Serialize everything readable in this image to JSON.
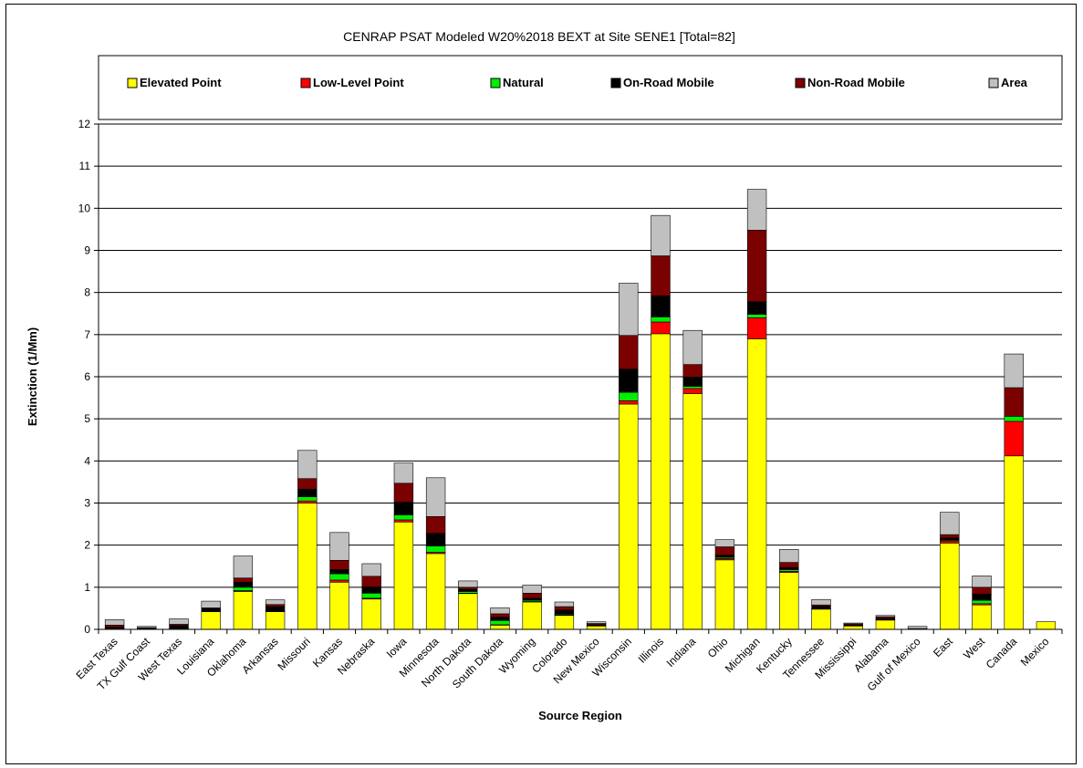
{
  "chart_data": {
    "type": "bar",
    "stacked": true,
    "title": "CENRAP PSAT Modeled W20%2018 BEXT at Site SENE1 [Total=82]",
    "xlabel": "Source Region",
    "ylabel": "Extinction (1/Mm)",
    "ylim": [
      0,
      12
    ],
    "yticks": [
      0,
      1,
      2,
      3,
      4,
      5,
      6,
      7,
      8,
      9,
      10,
      11,
      12
    ],
    "grid": true,
    "legend_position": "top",
    "categories": [
      "East Texas",
      "TX Gulf Coast",
      "West Texas",
      "Louisiana",
      "Oklahoma",
      "Arkansas",
      "Missouri",
      "Kansas",
      "Nebraska",
      "Iowa",
      "Minnesota",
      "North Dakota",
      "South Dakota",
      "Wyoming",
      "Colorado",
      "New Mexico",
      "Wisconsin",
      "Illinois",
      "Indiana",
      "Ohio",
      "Michigan",
      "Kentucky",
      "Tennessee",
      "Mississippi",
      "Alabama",
      "Gulf of Mexico",
      "East",
      "West",
      "Canada",
      "Mexico"
    ],
    "series": [
      {
        "name": "Elevated Point",
        "color": "#ffff00",
        "values": [
          0.02,
          0.01,
          0.02,
          0.42,
          0.9,
          0.42,
          3.0,
          1.12,
          0.72,
          2.55,
          1.8,
          0.85,
          0.1,
          0.65,
          0.33,
          0.08,
          5.35,
          7.02,
          5.6,
          1.65,
          6.9,
          1.35,
          0.48,
          0.08,
          0.22,
          0.02,
          2.05,
          0.58,
          4.12,
          0.18
        ]
      },
      {
        "name": "Low-Level Point",
        "color": "#ff0000",
        "values": [
          0.0,
          0.0,
          0.0,
          0.01,
          0.02,
          0.01,
          0.05,
          0.05,
          0.02,
          0.05,
          0.03,
          0.01,
          0.01,
          0.01,
          0.01,
          0.0,
          0.08,
          0.28,
          0.12,
          0.03,
          0.5,
          0.03,
          0.01,
          0.0,
          0.01,
          0.0,
          0.05,
          0.03,
          0.82,
          0.0
        ]
      },
      {
        "name": "Natural",
        "color": "#00ee00",
        "values": [
          0.01,
          0.0,
          0.01,
          0.01,
          0.08,
          0.01,
          0.1,
          0.15,
          0.12,
          0.12,
          0.15,
          0.04,
          0.1,
          0.03,
          0.02,
          0.01,
          0.2,
          0.12,
          0.05,
          0.03,
          0.08,
          0.04,
          0.01,
          0.0,
          0.0,
          0.0,
          0.02,
          0.08,
          0.12,
          0.0
        ]
      },
      {
        "name": "On-Road Mobile",
        "color": "#000000",
        "values": [
          0.02,
          0.02,
          0.06,
          0.05,
          0.12,
          0.1,
          0.18,
          0.1,
          0.15,
          0.3,
          0.3,
          0.05,
          0.08,
          0.05,
          0.1,
          0.02,
          0.55,
          0.5,
          0.22,
          0.05,
          0.3,
          0.05,
          0.05,
          0.02,
          0.03,
          0.0,
          0.05,
          0.15,
          0.0,
          0.0
        ]
      },
      {
        "name": "Non-Road Mobile",
        "color": "#7b0000",
        "values": [
          0.05,
          0.01,
          0.03,
          0.02,
          0.1,
          0.05,
          0.25,
          0.22,
          0.25,
          0.45,
          0.4,
          0.05,
          0.08,
          0.12,
          0.08,
          0.03,
          0.8,
          0.95,
          0.3,
          0.2,
          1.7,
          0.12,
          0.03,
          0.03,
          0.04,
          0.0,
          0.08,
          0.16,
          0.68,
          0.0
        ]
      },
      {
        "name": "Area",
        "color": "#c0c0c0",
        "values": [
          0.13,
          0.03,
          0.13,
          0.16,
          0.52,
          0.11,
          0.67,
          0.66,
          0.3,
          0.48,
          0.92,
          0.15,
          0.14,
          0.19,
          0.11,
          0.04,
          1.24,
          0.96,
          0.81,
          0.17,
          0.97,
          0.31,
          0.13,
          0.02,
          0.03,
          0.05,
          0.53,
          0.27,
          0.8,
          0.0
        ]
      }
    ]
  }
}
